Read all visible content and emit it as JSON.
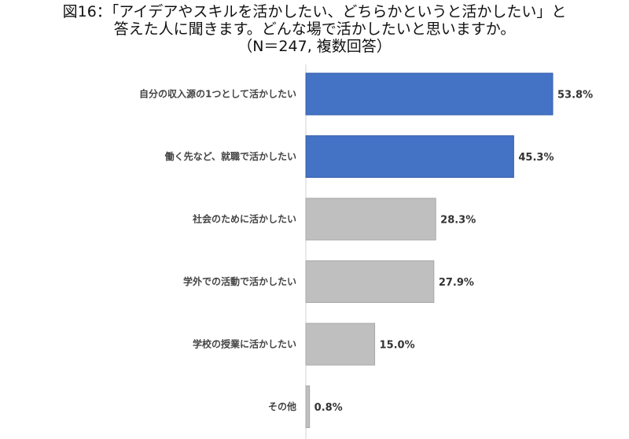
{
  "title_lines": [
    "図16：「アイデアやスキルを活かしたい、どちらかというと活かしたい」と",
    "答えた人に聞きます。どんな場で活かしたいと思いますか。",
    "（N＝247, 複数回答）"
  ],
  "colors": {
    "highlight": "#4472C4",
    "normal": "#BFBFBF",
    "axis": "#D0D0D0"
  },
  "chart_data": {
    "type": "bar",
    "orientation": "horizontal",
    "categories": [
      "自分の収入源の1つとして活かしたい",
      "働く先など、就職で活かしたい",
      "社会のために活かしたい",
      "学外での活動で活かしたい",
      "学校の授業に活かしたい",
      "その他"
    ],
    "values": [
      53.8,
      45.3,
      28.3,
      27.9,
      15.0,
      0.8
    ],
    "value_labels": [
      "53.8%",
      "45.3%",
      "28.3%",
      "27.9%",
      "15.0%",
      "0.8%"
    ],
    "highlighted": [
      true,
      true,
      false,
      false,
      false,
      false
    ],
    "xlim": [
      0,
      70
    ],
    "grid": false,
    "legend": "none"
  }
}
